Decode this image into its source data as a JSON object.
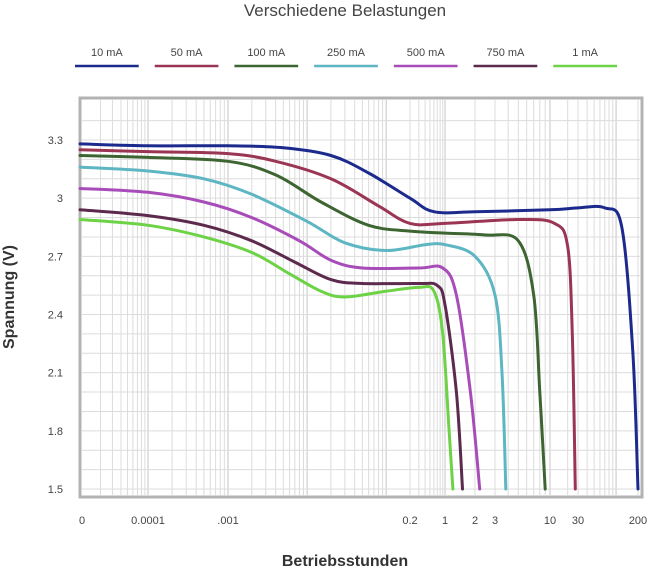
{
  "chart_data": {
    "type": "line",
    "title": "Verschiedene Belastungen",
    "xlabel": "Betriebsstunden",
    "ylabel": "Spannung (V)",
    "x_scale": "log",
    "x_tick_labels": [
      "0",
      "0.0001",
      ".001",
      "0.2",
      "1",
      "2",
      "3",
      "10",
      "30",
      "200"
    ],
    "y_tick_labels": [
      "3.3",
      "3",
      "2.7",
      "2.4",
      "2.1",
      "1.8",
      "1.5"
    ],
    "ylim": [
      1.5,
      3.5
    ],
    "grid": true,
    "legend_position": "top",
    "series": [
      {
        "name": "10 mA",
        "color": "#1b2a8c",
        "points": [
          [
            0,
            3.28
          ],
          [
            0.0001,
            3.27
          ],
          [
            0.001,
            3.27
          ],
          [
            0.005,
            3.26
          ],
          [
            0.02,
            3.22
          ],
          [
            0.06,
            3.13
          ],
          [
            0.2,
            3.0
          ],
          [
            0.6,
            2.93
          ],
          [
            2,
            2.93
          ],
          [
            10,
            2.94
          ],
          [
            30,
            2.95
          ],
          [
            70,
            2.95
          ],
          [
            120,
            2.85
          ],
          [
            170,
            2.2
          ],
          [
            200,
            1.5
          ]
        ]
      },
      {
        "name": "50 mA",
        "color": "#9b3554",
        "points": [
          [
            0,
            3.25
          ],
          [
            0.0001,
            3.24
          ],
          [
            0.001,
            3.23
          ],
          [
            0.004,
            3.19
          ],
          [
            0.02,
            3.1
          ],
          [
            0.08,
            2.96
          ],
          [
            0.2,
            2.87
          ],
          [
            1,
            2.87
          ],
          [
            5,
            2.89
          ],
          [
            12,
            2.87
          ],
          [
            20,
            2.75
          ],
          [
            24,
            2.3
          ],
          [
            27,
            1.5
          ]
        ]
      },
      {
        "name": "100 mA",
        "color": "#3d6531",
        "points": [
          [
            0,
            3.22
          ],
          [
            0.0001,
            3.21
          ],
          [
            0.001,
            3.19
          ],
          [
            0.004,
            3.12
          ],
          [
            0.015,
            2.98
          ],
          [
            0.06,
            2.86
          ],
          [
            0.2,
            2.83
          ],
          [
            1,
            2.82
          ],
          [
            2.5,
            2.81
          ],
          [
            5,
            2.78
          ],
          [
            7,
            2.5
          ],
          [
            8,
            2.0
          ],
          [
            9,
            1.5
          ]
        ]
      },
      {
        "name": "250 mA",
        "color": "#5eb6c2",
        "points": [
          [
            0,
            3.16
          ],
          [
            0.0001,
            3.14
          ],
          [
            0.0005,
            3.1
          ],
          [
            0.002,
            3.02
          ],
          [
            0.01,
            2.88
          ],
          [
            0.03,
            2.77
          ],
          [
            0.1,
            2.73
          ],
          [
            0.4,
            2.76
          ],
          [
            1,
            2.76
          ],
          [
            2,
            2.7
          ],
          [
            3,
            2.5
          ],
          [
            3.5,
            2.1
          ],
          [
            3.8,
            1.5
          ]
        ]
      },
      {
        "name": "500 mA",
        "color": "#a74cb8",
        "points": [
          [
            0,
            3.05
          ],
          [
            0.0001,
            3.03
          ],
          [
            0.0005,
            2.98
          ],
          [
            0.002,
            2.9
          ],
          [
            0.008,
            2.78
          ],
          [
            0.02,
            2.68
          ],
          [
            0.05,
            2.64
          ],
          [
            0.3,
            2.64
          ],
          [
            0.9,
            2.64
          ],
          [
            1.3,
            2.5
          ],
          [
            1.8,
            2.0
          ],
          [
            2.2,
            1.5
          ]
        ]
      },
      {
        "name": "750 mA",
        "color": "#5c2a4c",
        "points": [
          [
            0,
            2.94
          ],
          [
            0.0001,
            2.91
          ],
          [
            0.0005,
            2.86
          ],
          [
            0.002,
            2.78
          ],
          [
            0.007,
            2.67
          ],
          [
            0.02,
            2.58
          ],
          [
            0.05,
            2.56
          ],
          [
            0.3,
            2.56
          ],
          [
            0.7,
            2.55
          ],
          [
            1,
            2.45
          ],
          [
            1.3,
            2.0
          ],
          [
            1.5,
            1.5
          ]
        ]
      },
      {
        "name": "1 mA",
        "color": "#6dd246",
        "points": [
          [
            0,
            2.89
          ],
          [
            0.0001,
            2.86
          ],
          [
            0.0005,
            2.8
          ],
          [
            0.002,
            2.72
          ],
          [
            0.006,
            2.61
          ],
          [
            0.015,
            2.52
          ],
          [
            0.03,
            2.49
          ],
          [
            0.1,
            2.52
          ],
          [
            0.3,
            2.54
          ],
          [
            0.6,
            2.52
          ],
          [
            0.9,
            2.3
          ],
          [
            1.1,
            1.8
          ],
          [
            1.2,
            1.5
          ]
        ]
      }
    ]
  }
}
